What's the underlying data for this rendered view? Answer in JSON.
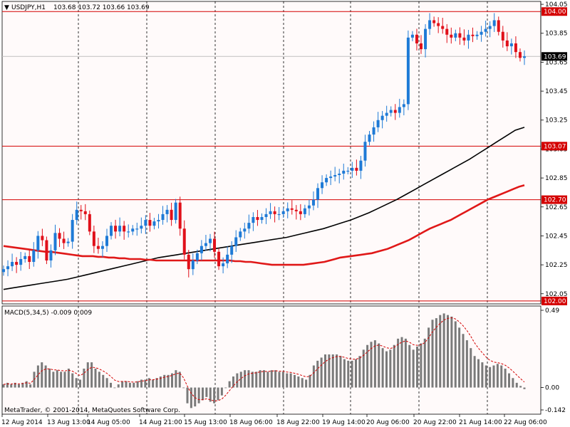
{
  "window": {
    "symbol_label": "USDJPY,H1",
    "ohlc_label": "103.68 103.72 103.66 103.69",
    "watermark": "MetaTrader, © 2001-2014, MetaQuotes Software Corp."
  },
  "colors": {
    "background": "#fffafa",
    "bull_candle": "#1e7ad6",
    "bear_candle": "#e0101a",
    "ma_fast": "#e01818",
    "ma_slow": "#000000",
    "hline": "#d40000",
    "current_price_line": "#c0c0c0",
    "macd_hist": "#7a7a7a",
    "macd_signal": "#d40000"
  },
  "chart_data": [
    {
      "type": "candlestick",
      "title": "USDJPY,H1",
      "ylim": [
        101.98,
        104.07
      ],
      "y_ticks": [
        "104.05",
        "103.85",
        "103.65",
        "103.45",
        "103.25",
        "103.05",
        "102.85",
        "102.65",
        "102.45",
        "102.25",
        "102.05"
      ],
      "x_ticks": [
        "12 Aug 2014",
        "13 Aug 13:00",
        "14 Aug 05:00",
        "14 Aug 21:00",
        "15 Aug 13:00",
        "18 Aug 06:00",
        "18 Aug 22:00",
        "19 Aug 14:00",
        "20 Aug 06:00",
        "20 Aug 22:00",
        "21 Aug 14:00",
        "22 Aug 06:00"
      ],
      "horizontal_levels": [
        {
          "label": "104.00",
          "value": 104.0
        },
        {
          "label": "103.07",
          "value": 103.07
        },
        {
          "label": "102.70",
          "value": 102.7
        },
        {
          "label": "102.00",
          "value": 102.0
        }
      ],
      "current_price": {
        "label": "103.69",
        "value": 103.69
      },
      "close_series": [
        102.22,
        102.24,
        102.27,
        102.25,
        102.29,
        102.31,
        102.27,
        102.35,
        102.45,
        102.42,
        102.28,
        102.35,
        102.47,
        102.43,
        102.4,
        102.41,
        102.56,
        102.63,
        102.62,
        102.6,
        102.48,
        102.38,
        102.36,
        102.38,
        102.45,
        102.52,
        102.48,
        102.52,
        102.48,
        102.48,
        102.5,
        102.5,
        102.52,
        102.56,
        102.52,
        102.55,
        102.56,
        102.6,
        102.63,
        102.56,
        102.68,
        102.5,
        102.32,
        102.22,
        102.28,
        102.33,
        102.38,
        102.4,
        102.43,
        102.34,
        102.24,
        102.26,
        102.32,
        102.38,
        102.44,
        102.48,
        102.5,
        102.54,
        102.58,
        102.56,
        102.58,
        102.6,
        102.62,
        102.6,
        102.6,
        102.62,
        102.64,
        102.63,
        102.62,
        102.6,
        102.64,
        102.66,
        102.7,
        102.78,
        102.82,
        102.85,
        102.86,
        102.87,
        102.88,
        102.9,
        102.9,
        102.92,
        102.9,
        102.97,
        103.1,
        103.15,
        103.2,
        103.25,
        103.28,
        103.3,
        103.32,
        103.3,
        103.34,
        103.36,
        103.82,
        103.84,
        103.78,
        103.74,
        103.88,
        103.94,
        103.92,
        103.9,
        103.88,
        103.84,
        103.82,
        103.85,
        103.82,
        103.8,
        103.84,
        103.83,
        103.84,
        103.86,
        103.88,
        103.9,
        103.94,
        103.86,
        103.8,
        103.76,
        103.78,
        103.72,
        103.68,
        103.69
      ],
      "ma_fast_series": [
        102.38,
        102.375,
        102.37,
        102.365,
        102.36,
        102.355,
        102.35,
        102.345,
        102.34,
        102.34,
        102.335,
        102.33,
        102.325,
        102.32,
        102.315,
        102.31,
        102.31,
        102.31,
        102.305,
        102.305,
        102.3,
        102.3,
        102.295,
        102.295,
        102.29,
        102.29,
        102.29,
        102.285,
        102.285,
        102.28,
        102.28,
        102.28,
        102.28,
        102.28,
        102.28,
        102.28,
        102.28,
        102.28,
        102.28,
        102.28,
        102.28,
        102.28,
        102.28,
        102.28,
        102.275,
        102.275,
        102.27,
        102.27,
        102.265,
        102.26,
        102.255,
        102.25,
        102.25,
        102.25,
        102.25,
        102.25,
        102.25,
        102.25,
        102.255,
        102.26,
        102.265,
        102.27,
        102.28,
        102.29,
        102.3,
        102.305,
        102.31,
        102.315,
        102.32,
        102.325,
        102.33,
        102.34,
        102.35,
        102.36,
        102.375,
        102.39,
        102.405,
        102.42,
        102.44,
        102.46,
        102.48,
        102.5,
        102.515,
        102.53,
        102.545,
        102.56,
        102.58,
        102.6,
        102.62,
        102.64,
        102.66,
        102.68,
        102.7,
        102.715,
        102.73,
        102.745,
        102.76,
        102.775,
        102.79,
        102.8
      ],
      "ma_slow_series": [
        102.08,
        102.09,
        102.1,
        102.11,
        102.12,
        102.13,
        102.14,
        102.15,
        102.165,
        102.18,
        102.195,
        102.21,
        102.225,
        102.24,
        102.255,
        102.27,
        102.285,
        102.3,
        102.31,
        102.32,
        102.33,
        102.34,
        102.35,
        102.36,
        102.37,
        102.38,
        102.39,
        102.4,
        102.41,
        102.42,
        102.43,
        102.44,
        102.455,
        102.47,
        102.485,
        102.5,
        102.52,
        102.54,
        102.56,
        102.585,
        102.61,
        102.64,
        102.67,
        102.7,
        102.735,
        102.77,
        102.805,
        102.84,
        102.875,
        102.91,
        102.945,
        102.98,
        103.02,
        103.06,
        103.1,
        103.14,
        103.18,
        103.2
      ]
    },
    {
      "type": "bar",
      "title": "MACD(5,34,5) -0.009 0.009",
      "ylim": [
        -0.142,
        0.49
      ],
      "y_ticks": [
        "0.49",
        "0.00",
        "-0.142"
      ],
      "histogram": [
        0.02,
        0.03,
        0.02,
        0.03,
        0.02,
        0.03,
        0.04,
        0.02,
        0.1,
        0.14,
        0.16,
        0.14,
        0.12,
        0.1,
        0.11,
        0.1,
        0.1,
        0.12,
        0.09,
        0.06,
        0.05,
        0.12,
        0.16,
        0.16,
        0.12,
        0.1,
        0.08,
        0.06,
        0.03,
        0.0,
        0.02,
        0.04,
        0.04,
        0.03,
        0.03,
        0.04,
        0.05,
        0.05,
        0.06,
        0.05,
        0.06,
        0.07,
        0.08,
        0.08,
        0.09,
        0.11,
        0.1,
        0.0,
        -0.1,
        -0.13,
        -0.12,
        -0.1,
        -0.08,
        -0.06,
        -0.09,
        -0.1,
        -0.08,
        -0.05,
        0.0,
        0.04,
        0.07,
        0.09,
        0.1,
        0.11,
        0.11,
        0.1,
        0.1,
        0.11,
        0.11,
        0.1,
        0.11,
        0.11,
        0.1,
        0.1,
        0.09,
        0.09,
        0.08,
        0.07,
        0.06,
        0.05,
        0.08,
        0.14,
        0.17,
        0.19,
        0.21,
        0.21,
        0.21,
        0.21,
        0.2,
        0.18,
        0.17,
        0.17,
        0.18,
        0.2,
        0.24,
        0.27,
        0.29,
        0.3,
        0.28,
        0.25,
        0.23,
        0.24,
        0.27,
        0.31,
        0.32,
        0.31,
        0.27,
        0.24,
        0.26,
        0.28,
        0.31,
        0.38,
        0.43,
        0.44,
        0.46,
        0.47,
        0.46,
        0.45,
        0.42,
        0.38,
        0.34,
        0.3,
        0.25,
        0.2,
        0.18,
        0.16,
        0.14,
        0.13,
        0.14,
        0.15,
        0.14,
        0.12,
        0.09,
        0.06,
        0.03,
        0.01,
        -0.01
      ]
    }
  ]
}
